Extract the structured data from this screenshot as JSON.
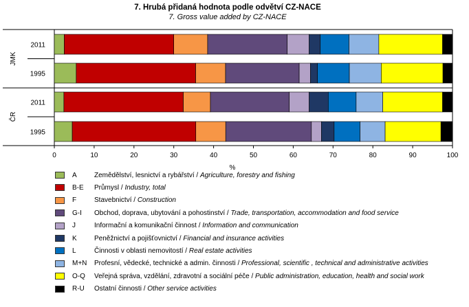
{
  "chart_data": {
    "type": "bar",
    "orientation": "horizontal",
    "stacked": true,
    "title": "7. Hrubá přidaná hodnota podle odvětví CZ-NACE",
    "subtitle": "7. Gross value added by CZ-NACE",
    "xlabel": "%",
    "xlim": [
      0,
      100
    ],
    "xticks": [
      0,
      10,
      20,
      30,
      40,
      50,
      60,
      70,
      80,
      90,
      100
    ],
    "groups": [
      {
        "name": "JMK",
        "categories": [
          "2011",
          "1995"
        ]
      },
      {
        "name": "ČR",
        "categories": [
          "2011",
          "1995"
        ]
      }
    ],
    "categories": [
      "JMK 2011",
      "JMK 1995",
      "ČR 2011",
      "ČR 1995"
    ],
    "category_labels": [
      "2011",
      "1995",
      "2011",
      "1995"
    ],
    "series": [
      {
        "code": "A",
        "name_cz": "Zemědělství, lesnictví a rybářství",
        "name_en": "Agriculture, forestry and fishing",
        "color": "#9BBB59",
        "values": [
          2.5,
          5.5,
          2.4,
          4.5
        ]
      },
      {
        "code": "B-E",
        "name_cz": "Průmysl",
        "name_en": "Industry, total",
        "color": "#C00000",
        "values": [
          27.5,
          30.0,
          30.0,
          31.0
        ]
      },
      {
        "code": "F",
        "name_cz": "Stavebnictví",
        "name_en": "Construction",
        "color": "#F79646",
        "values": [
          8.5,
          7.5,
          6.8,
          7.5
        ]
      },
      {
        "code": "G-I",
        "name_cz": "Obchod, doprava, ubytování a pohostinství",
        "name_en": "Trade, transportation, accommodation and food service",
        "color": "#604A7B",
        "values": [
          20.0,
          18.5,
          19.8,
          21.5
        ]
      },
      {
        "code": "J",
        "name_cz": "Informační a komunikační činnost",
        "name_en": "Information and communication",
        "color": "#B3A2C7",
        "values": [
          5.5,
          2.8,
          5.0,
          2.5
        ]
      },
      {
        "code": "K",
        "name_cz": "Peněžnictví a pojišťovnictví",
        "name_en": "Financial and insurance activities",
        "color": "#1F3864",
        "values": [
          2.8,
          1.8,
          4.8,
          3.2
        ]
      },
      {
        "code": "L",
        "name_cz": "Činnosti v oblasti nemovitostí",
        "name_en": "Real estate activities",
        "color": "#0070C0",
        "values": [
          7.2,
          8.0,
          7.0,
          6.5
        ]
      },
      {
        "code": "M+N",
        "name_cz": "Profesní, vědecké, technické a admin. činnosti",
        "name_en": "Professional, scientific , technical and administrative activities",
        "color": "#8EB4E3",
        "values": [
          7.5,
          8.0,
          6.7,
          6.3
        ]
      },
      {
        "code": "O-Q",
        "name_cz": "Veřejná správa, vzdělání, zdravotní a sociální péče",
        "name_en": "Public administration, education, health and social work",
        "color": "#FFFF00",
        "values": [
          16.0,
          15.5,
          15.0,
          14.0
        ]
      },
      {
        "code": "R-U",
        "name_cz": "Ostatní činnosti",
        "name_en": "Other service activities",
        "color": "#000000",
        "values": [
          2.5,
          2.4,
          2.5,
          2.9
        ]
      }
    ]
  }
}
